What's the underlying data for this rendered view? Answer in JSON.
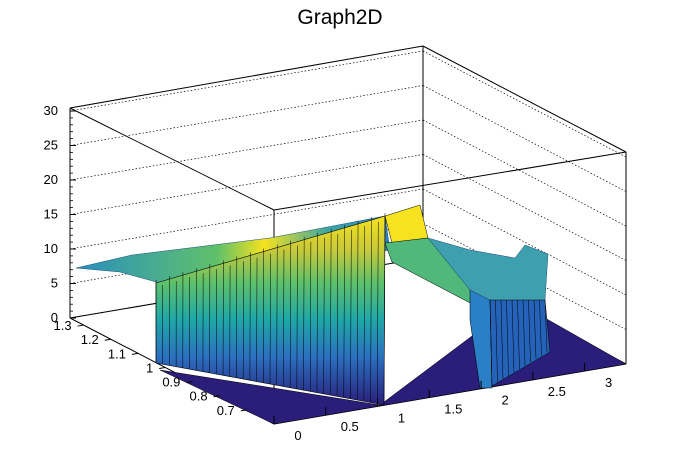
{
  "chart_data": {
    "type": "surface",
    "title": "Graph2D",
    "xlabel": "",
    "ylabel": "",
    "zlabel": "",
    "xlim": [
      0,
      3.4
    ],
    "ylim": [
      0.6,
      1.35
    ],
    "zlim": [
      0,
      31
    ],
    "x_ticks": [
      "0",
      "0.5",
      "1",
      "1.5",
      "2",
      "2.5",
      "3"
    ],
    "y_ticks": [
      "0.7",
      "0.8",
      "0.9",
      "1",
      "1.1",
      "1.2",
      "1.3"
    ],
    "z_ticks": [
      "0",
      "5",
      "10",
      "15",
      "20",
      "25",
      "30"
    ],
    "grid": true,
    "colormap": "viridis-like (blue to yellow)",
    "surface_points": [
      {
        "x": 0.0,
        "y": 1.35,
        "z": 7.0
      },
      {
        "x": 0.0,
        "y": 0.9,
        "z": 8.5
      },
      {
        "x": 0.0,
        "y": 0.6,
        "z": 0.0
      },
      {
        "x": 0.9,
        "y": 0.9,
        "z": 14.0
      },
      {
        "x": 1.2,
        "y": 0.6,
        "z": 0.0
      },
      {
        "x": 1.3,
        "y": 0.9,
        "z": 17.0
      },
      {
        "x": 1.55,
        "y": 0.9,
        "z": 16.5
      },
      {
        "x": 2.0,
        "y": 0.9,
        "z": 0.0
      },
      {
        "x": 2.4,
        "y": 1.0,
        "z": 11.0
      },
      {
        "x": 3.4,
        "y": 0.6,
        "z": 0.0
      }
    ]
  }
}
